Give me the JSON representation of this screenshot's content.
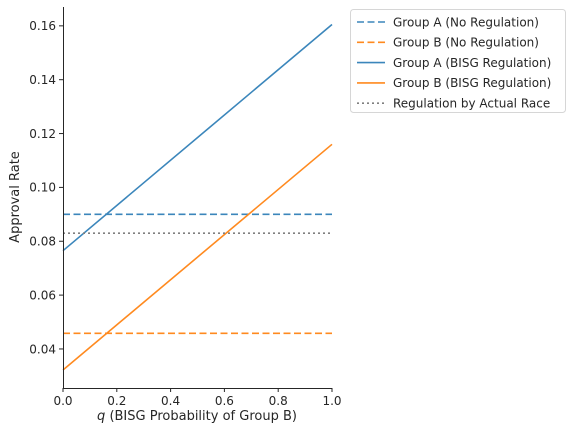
{
  "chart_data": {
    "type": "line",
    "xlabel_var": "q",
    "xlabel_rest": " (BISG Probability of Group B)",
    "ylabel": "Approval Rate",
    "xlim": [
      0.0,
      1.0
    ],
    "ylim": [
      0.0255,
      0.167
    ],
    "xticks": [
      {
        "value": 0.0,
        "label": "0.0"
      },
      {
        "value": 0.2,
        "label": "0.2"
      },
      {
        "value": 0.4,
        "label": "0.4"
      },
      {
        "value": 0.6,
        "label": "0.6"
      },
      {
        "value": 0.8,
        "label": "0.8"
      },
      {
        "value": 1.0,
        "label": "1.0"
      }
    ],
    "yticks": [
      {
        "value": 0.04,
        "label": "0.04"
      },
      {
        "value": 0.06,
        "label": "0.06"
      },
      {
        "value": 0.08,
        "label": "0.08"
      },
      {
        "value": 0.1,
        "label": "0.10"
      },
      {
        "value": 0.12,
        "label": "0.12"
      },
      {
        "value": 0.14,
        "label": "0.14"
      },
      {
        "value": 0.16,
        "label": "0.16"
      }
    ],
    "grid": false,
    "legend_placement": "outside-top-right",
    "series": [
      {
        "name": "Group A (No Regulation)",
        "color": "#3b86bb",
        "style": "dashed",
        "x": [
          0.0,
          1.0
        ],
        "y": [
          0.09,
          0.09
        ]
      },
      {
        "name": "Group B (No Regulation)",
        "color": "#ff8a1f",
        "style": "dashed",
        "x": [
          0.0,
          1.0
        ],
        "y": [
          0.0458,
          0.0458
        ]
      },
      {
        "name": "Group A (BISG Regulation)",
        "color": "#3b86bb",
        "style": "solid",
        "x": [
          0.0,
          1.0
        ],
        "y": [
          0.0765,
          0.1605
        ]
      },
      {
        "name": "Group B (BISG Regulation)",
        "color": "#ff8a1f",
        "style": "solid",
        "x": [
          0.0,
          1.0
        ],
        "y": [
          0.0322,
          0.116
        ]
      },
      {
        "name": "Regulation by Actual Race",
        "color": "#7f7f7f",
        "style": "dotted",
        "x": [
          0.0,
          1.0
        ],
        "y": [
          0.083,
          0.083
        ]
      }
    ]
  }
}
